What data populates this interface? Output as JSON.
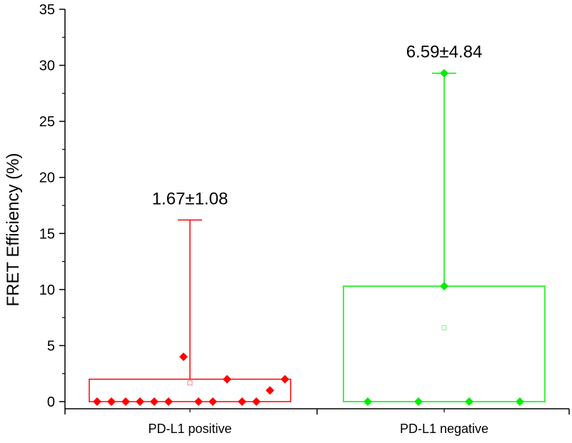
{
  "colors": {
    "positive": "#ff0000",
    "negative": "#00ee00",
    "axis": "#000000"
  },
  "chart_data": {
    "type": "box",
    "title": "",
    "xlabel": "",
    "ylabel": "FRET Efficiency (%)",
    "ylim": [
      0,
      35
    ],
    "yticks": [
      0,
      5,
      10,
      15,
      20,
      25,
      30,
      35
    ],
    "grid": false,
    "categories": [
      "PD-L1 positive",
      "PD-L1 negative"
    ],
    "groups": [
      {
        "category": "PD-L1 positive",
        "annotation": "1.67±1.08",
        "box": {
          "q1": 0,
          "q3": 2.0
        },
        "whisker": {
          "low": 0,
          "high": 16.2
        },
        "mean": 1.67,
        "points": [
          0,
          0,
          0,
          0,
          0,
          0,
          4.0,
          0,
          0,
          2.0,
          0,
          0,
          1.0,
          2.0
        ],
        "color_key": "positive"
      },
      {
        "category": "PD-L1 negative",
        "annotation": "6.59±4.84",
        "box": {
          "q1": 0,
          "q3": 10.3
        },
        "whisker": {
          "low": 0,
          "high": 29.3
        },
        "mean": 6.59,
        "points": [
          0,
          0,
          10.3,
          29.3,
          0,
          0
        ],
        "color_key": "negative"
      }
    ]
  }
}
